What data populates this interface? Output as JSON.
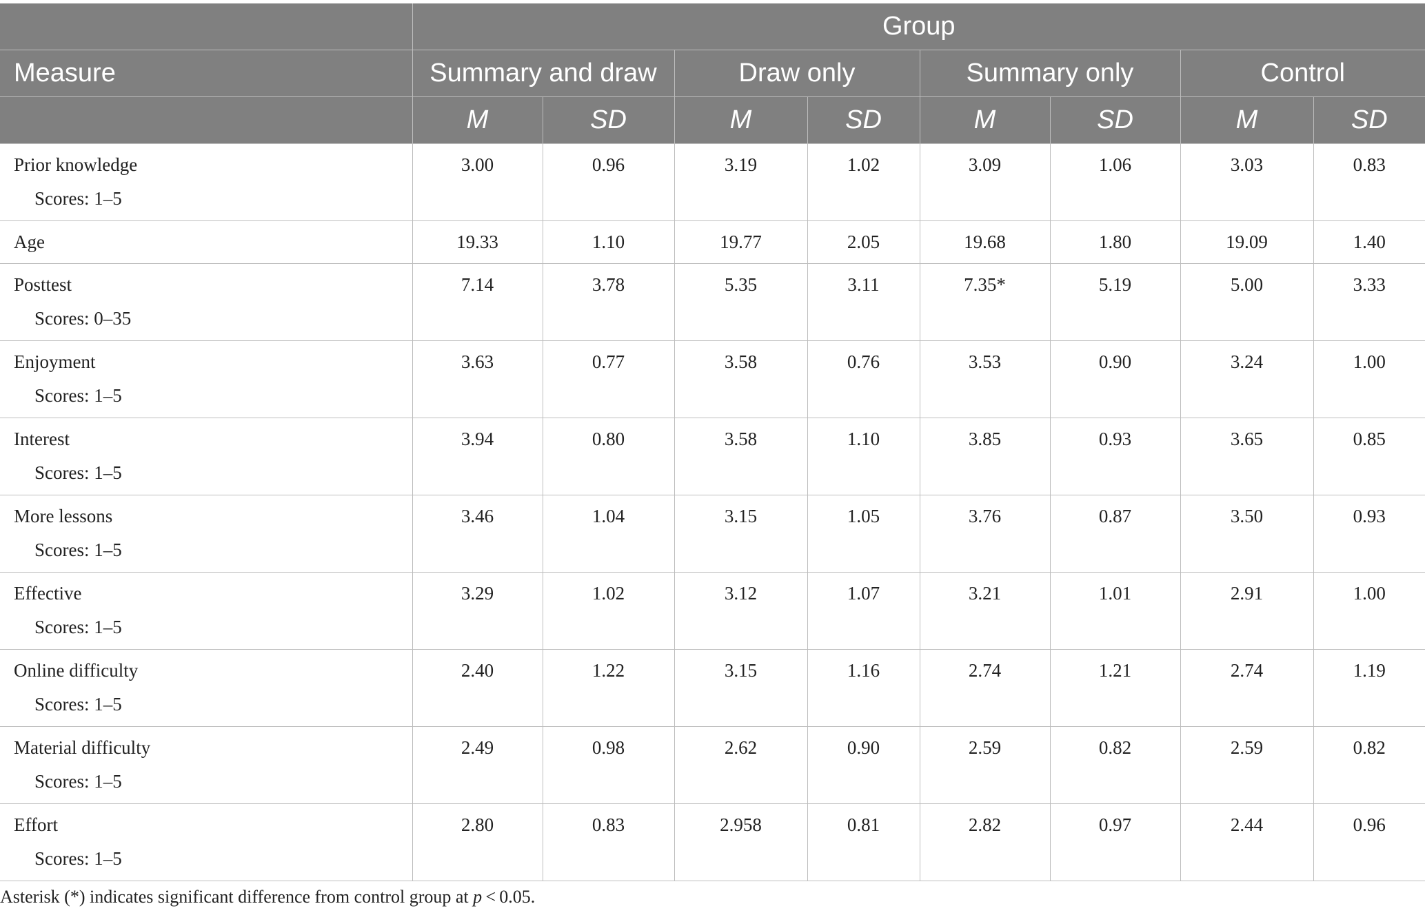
{
  "header": {
    "group_label": "Group",
    "measure_label": "Measure",
    "groups": [
      "Summary and draw",
      "Draw only",
      "Summary only",
      "Control"
    ],
    "stat_m": "M",
    "stat_sd": "SD"
  },
  "rows": [
    {
      "label": "Prior knowledge",
      "sub": "Scores: 1–5",
      "cells": [
        "3.00",
        "0.96",
        "3.19",
        "1.02",
        "3.09",
        "1.06",
        "3.03",
        "0.83"
      ]
    },
    {
      "label": "Age",
      "sub": "",
      "cells": [
        "19.33",
        "1.10",
        "19.77",
        "2.05",
        "19.68",
        "1.80",
        "19.09",
        "1.40"
      ]
    },
    {
      "label": "Posttest",
      "sub": "Scores: 0–35",
      "cells": [
        "7.14",
        "3.78",
        "5.35",
        "3.11",
        "7.35*",
        "5.19",
        "5.00",
        "3.33"
      ]
    },
    {
      "label": "Enjoyment",
      "sub": "Scores: 1–5",
      "cells": [
        "3.63",
        "0.77",
        "3.58",
        "0.76",
        "3.53",
        "0.90",
        "3.24",
        "1.00"
      ]
    },
    {
      "label": "Interest",
      "sub": "Scores: 1–5",
      "cells": [
        "3.94",
        "0.80",
        "3.58",
        "1.10",
        "3.85",
        "0.93",
        "3.65",
        "0.85"
      ]
    },
    {
      "label": "More lessons",
      "sub": "Scores: 1–5",
      "cells": [
        "3.46",
        "1.04",
        "3.15",
        "1.05",
        "3.76",
        "0.87",
        "3.50",
        "0.93"
      ]
    },
    {
      "label": "Effective",
      "sub": "Scores: 1–5",
      "cells": [
        "3.29",
        "1.02",
        "3.12",
        "1.07",
        "3.21",
        "1.01",
        "2.91",
        "1.00"
      ]
    },
    {
      "label": "Online difficulty",
      "sub": "Scores: 1–5",
      "cells": [
        "2.40",
        "1.22",
        "3.15",
        "1.16",
        "2.74",
        "1.21",
        "2.74",
        "1.19"
      ]
    },
    {
      "label": "Material difficulty",
      "sub": "Scores: 1–5",
      "cells": [
        "2.49",
        "0.98",
        "2.62",
        "0.90",
        "2.59",
        "0.82",
        "2.59",
        "0.82"
      ]
    },
    {
      "label": "Effort",
      "sub": "Scores: 1–5",
      "cells": [
        "2.80",
        "0.83",
        "2.958",
        "0.81",
        "2.82",
        "0.97",
        "2.44",
        "0.96"
      ]
    }
  ],
  "footnote": {
    "before": "Asterisk (*) indicates significant difference from control group at ",
    "p": "p",
    "after": " < 0.05."
  }
}
